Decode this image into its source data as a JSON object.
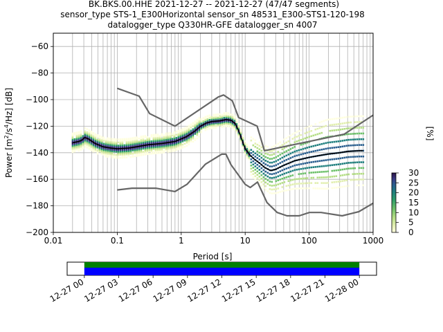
{
  "title": {
    "line1": "BK.BKS.00.HHE   2021-12-27 -- 2021-12-27  (47/47 segments)",
    "line2": "sensor_type STS-1_E300Horizontal sensor_sn 48531_E300-STS1-120-198",
    "line3": "datalogger_type Q330HR-GFE datalogger_sn 4007"
  },
  "axes": {
    "xlabel": "Period [s]",
    "ylabel_base": "Power [m",
    "ylabel_sup1": "2",
    "ylabel_mid": "/s",
    "ylabel_sup2": "4",
    "ylabel_end": "/Hz] [dB]",
    "xscale": "log",
    "xlim": [
      0.01,
      1000
    ],
    "ylim": [
      -200,
      -50
    ],
    "xticks": [
      {
        "v": 0.01,
        "label": "0.01"
      },
      {
        "v": 0.1,
        "label": "0.1"
      },
      {
        "v": 1,
        "label": "1"
      },
      {
        "v": 10,
        "label": "10"
      },
      {
        "v": 100,
        "label": "100"
      },
      {
        "v": 1000,
        "label": "1000"
      }
    ],
    "yticks": [
      {
        "v": -60,
        "label": "−60"
      },
      {
        "v": -80,
        "label": "−80"
      },
      {
        "v": -100,
        "label": "−100"
      },
      {
        "v": -120,
        "label": "−120"
      },
      {
        "v": -140,
        "label": "−140"
      },
      {
        "v": -160,
        "label": "−160"
      },
      {
        "v": -180,
        "label": "−180"
      },
      {
        "v": -200,
        "label": "−200"
      }
    ],
    "grid": true
  },
  "colorbar": {
    "label": "[%]",
    "range": [
      0,
      30
    ],
    "ticks": [
      {
        "v": 0,
        "label": "0"
      },
      {
        "v": 5,
        "label": "5"
      },
      {
        "v": 10,
        "label": "10"
      },
      {
        "v": 15,
        "label": "15"
      },
      {
        "v": 20,
        "label": "20"
      },
      {
        "v": 25,
        "label": "25"
      },
      {
        "v": 30,
        "label": "30"
      }
    ]
  },
  "timeline": {
    "ticks": [
      {
        "label": "12-27 00"
      },
      {
        "label": "12-27 03"
      },
      {
        "label": "12-27 06"
      },
      {
        "label": "12-27 09"
      },
      {
        "label": "12-27 12"
      },
      {
        "label": "12-27 15"
      },
      {
        "label": "12-27 18"
      },
      {
        "label": "12-27 21"
      },
      {
        "label": "12-28 00"
      }
    ],
    "coverage_start_hour": 0,
    "coverage_end_hour": 24,
    "axis_start_hour": -1.5,
    "axis_end_hour": 25.5,
    "top_color": "#008000",
    "bottom_color": "#0000ff"
  },
  "chart_data": {
    "type": "line",
    "series": [
      {
        "role": "nhnm",
        "color": "#666666",
        "points": [
          [
            0.1,
            -91.5
          ],
          [
            0.22,
            -97.4
          ],
          [
            0.32,
            -110.5
          ],
          [
            0.8,
            -120
          ],
          [
            3.8,
            -98
          ],
          [
            4.6,
            -96.5
          ],
          [
            6.3,
            -101
          ],
          [
            7.9,
            -113.5
          ],
          [
            15.4,
            -120
          ],
          [
            20,
            -138.5
          ],
          [
            354.8,
            -126
          ],
          [
            10000,
            -80
          ]
        ]
      },
      {
        "role": "nlnm",
        "color": "#666666",
        "points": [
          [
            0.1,
            -168
          ],
          [
            0.17,
            -166.7
          ],
          [
            0.4,
            -166.7
          ],
          [
            0.8,
            -169.2
          ],
          [
            1.24,
            -163.7
          ],
          [
            2.4,
            -148.6
          ],
          [
            4.3,
            -141.1
          ],
          [
            5,
            -141.1
          ],
          [
            6,
            -149
          ],
          [
            10,
            -163.8
          ],
          [
            12,
            -166.2
          ],
          [
            15.6,
            -162.1
          ],
          [
            21.9,
            -177.5
          ],
          [
            31.6,
            -185
          ],
          [
            45,
            -187.5
          ],
          [
            70,
            -187.5
          ],
          [
            101,
            -185
          ],
          [
            154,
            -185
          ],
          [
            328,
            -187.5
          ],
          [
            600,
            -184.4
          ],
          [
            1000,
            -178
          ]
        ]
      },
      {
        "role": "mean",
        "color": "#000000",
        "points": [
          [
            0.02,
            -132.5
          ],
          [
            0.025,
            -131.5
          ],
          [
            0.028,
            -130.5
          ],
          [
            0.031,
            -128.5
          ],
          [
            0.035,
            -129.5
          ],
          [
            0.045,
            -133
          ],
          [
            0.06,
            -135.5
          ],
          [
            0.08,
            -136.5
          ],
          [
            0.1,
            -137
          ],
          [
            0.15,
            -136.5
          ],
          [
            0.2,
            -135.5
          ],
          [
            0.3,
            -134
          ],
          [
            0.5,
            -133
          ],
          [
            0.8,
            -131.5
          ],
          [
            1.2,
            -128
          ],
          [
            1.6,
            -124
          ],
          [
            2,
            -120
          ],
          [
            2.5,
            -117.5
          ],
          [
            3,
            -116.5
          ],
          [
            4,
            -116
          ],
          [
            5,
            -115
          ],
          [
            6,
            -115.5
          ],
          [
            7,
            -118
          ],
          [
            8,
            -124
          ],
          [
            9,
            -131
          ],
          [
            10,
            -137
          ],
          [
            12,
            -142
          ],
          [
            14,
            -145
          ],
          [
            17,
            -148
          ],
          [
            20,
            -151
          ],
          [
            25,
            -153.5
          ],
          [
            30,
            -152.5
          ],
          [
            40,
            -149.5
          ],
          [
            60,
            -146
          ],
          [
            100,
            -143.5
          ],
          [
            150,
            -142
          ],
          [
            200,
            -141
          ],
          [
            300,
            -140
          ],
          [
            400,
            -139
          ],
          [
            600,
            -138.5
          ],
          [
            700,
            -138.5
          ]
        ]
      }
    ]
  }
}
